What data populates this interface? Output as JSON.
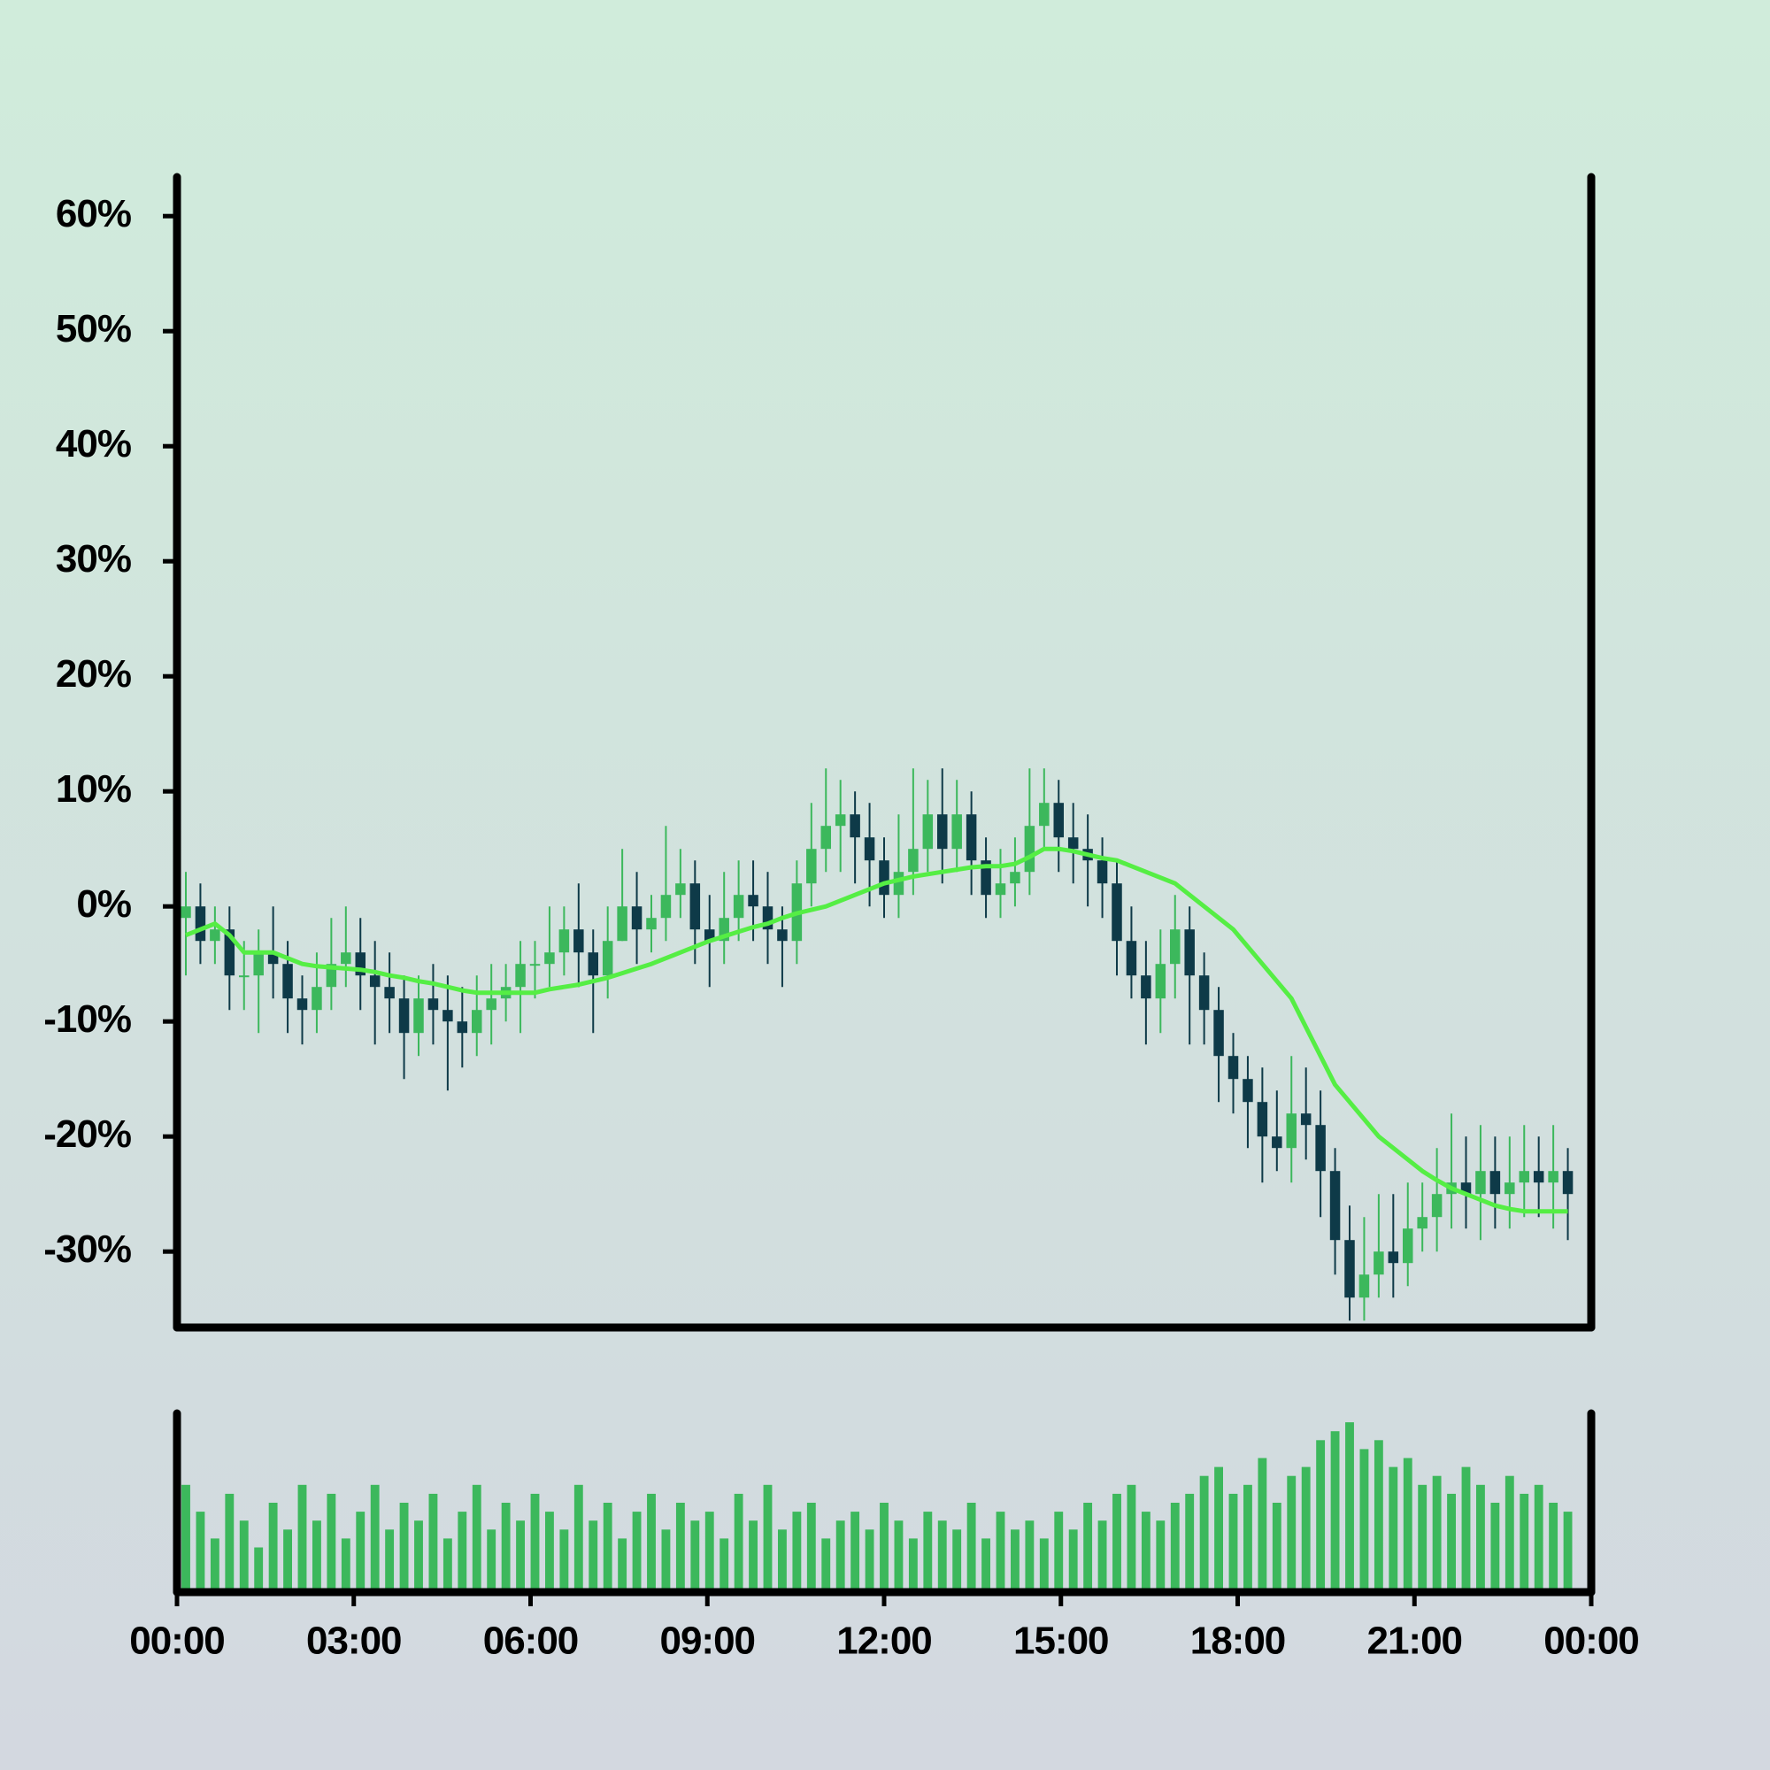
{
  "chart_data": {
    "type": "candlestick",
    "x": [
      0,
      15,
      30,
      45,
      60,
      75,
      90,
      105,
      120,
      135,
      150,
      165,
      180,
      195,
      210,
      225,
      240,
      255,
      270,
      285,
      300,
      315,
      330,
      345,
      360,
      375,
      390,
      405,
      420,
      435,
      450,
      465,
      480,
      495,
      510,
      525,
      540,
      555,
      570,
      585,
      600,
      615,
      630,
      645,
      660,
      675,
      690,
      705,
      720,
      735,
      750,
      765,
      780,
      795,
      810,
      825,
      840,
      855,
      870,
      885,
      900,
      915,
      930,
      945,
      960,
      975,
      990,
      1005,
      1020,
      1035,
      1050,
      1065,
      1080,
      1095,
      1110,
      1125,
      1140,
      1155,
      1170,
      1185,
      1200,
      1215,
      1230,
      1245,
      1260,
      1275,
      1290,
      1305,
      1320,
      1335,
      1350,
      1365,
      1380,
      1395,
      1410,
      1425
    ],
    "xlim": [
      0,
      1440
    ],
    "xticks": [
      {
        "value": 0,
        "label": "00:00"
      },
      {
        "value": 180,
        "label": "03:00"
      },
      {
        "value": 360,
        "label": "06:00"
      },
      {
        "value": 540,
        "label": "09:00"
      },
      {
        "value": 720,
        "label": "12:00"
      },
      {
        "value": 900,
        "label": "15:00"
      },
      {
        "value": 1080,
        "label": "18:00"
      },
      {
        "value": 1260,
        "label": "21:00"
      },
      {
        "value": 1440,
        "label": "00:00"
      }
    ],
    "ylim": [
      -36.6,
      63.4
    ],
    "yticks": [
      {
        "value": 60,
        "label": "60%"
      },
      {
        "value": 50,
        "label": "50%"
      },
      {
        "value": 40,
        "label": "40%"
      },
      {
        "value": 30,
        "label": "30%"
      },
      {
        "value": 20,
        "label": "20%"
      },
      {
        "value": 10,
        "label": "10%"
      },
      {
        "value": 0,
        "label": "0%"
      },
      {
        "value": -10,
        "label": "-10%"
      },
      {
        "value": -20,
        "label": "-20%"
      },
      {
        "value": -30,
        "label": "-30%"
      }
    ],
    "open": [
      -1,
      0,
      -3,
      -2,
      -6,
      -6,
      -4,
      -5,
      -8,
      -9,
      -7,
      -5,
      -4,
      -6,
      -7,
      -8,
      -11,
      -8,
      -9,
      -10,
      -11,
      -9,
      -8,
      -7,
      -5,
      -5,
      -4,
      -2,
      -4,
      -6,
      -3,
      0,
      -2,
      -1,
      1,
      2,
      -2,
      -3,
      -1,
      1,
      0,
      -2,
      -3,
      2,
      5,
      7,
      8,
      6,
      4,
      1,
      3,
      5,
      8,
      5,
      8,
      4,
      1,
      2,
      3,
      7,
      9,
      6,
      5,
      4,
      2,
      -3,
      -6,
      -8,
      -5,
      -2,
      -6,
      -9,
      -13,
      -15,
      -17,
      -20,
      -21,
      -18,
      -19,
      -23,
      -29,
      -34,
      -32,
      -30,
      -31,
      -28,
      -27,
      -25,
      -24,
      -25,
      -23,
      -25,
      -24,
      -23,
      -24,
      -23
    ],
    "high": [
      3,
      2,
      0,
      0,
      -3,
      -2,
      0,
      -3,
      -6,
      -4,
      -1,
      0,
      -1,
      -3,
      -4,
      -6,
      -6,
      -5,
      -6,
      -7,
      -6,
      -5,
      -5,
      -3,
      -3,
      0,
      0,
      2,
      -2,
      0,
      5,
      3,
      1,
      7,
      5,
      4,
      1,
      3,
      4,
      4,
      3,
      0,
      4,
      9,
      12,
      11,
      10,
      9,
      6,
      8,
      12,
      11,
      12,
      11,
      10,
      6,
      5,
      6,
      12,
      12,
      11,
      9,
      8,
      6,
      4,
      0,
      -3,
      -2,
      1,
      0,
      -4,
      -7,
      -11,
      -13,
      -14,
      -16,
      -13,
      -14,
      -16,
      -21,
      -26,
      -27,
      -25,
      -25,
      -24,
      -24,
      -21,
      -18,
      -20,
      -19,
      -20,
      -20,
      -19,
      -20,
      -19,
      -21
    ],
    "low": [
      -6,
      -5,
      -5,
      -9,
      -9,
      -11,
      -8,
      -11,
      -12,
      -11,
      -9,
      -7,
      -9,
      -12,
      -11,
      -15,
      -13,
      -12,
      -16,
      -14,
      -13,
      -12,
      -10,
      -11,
      -8,
      -7,
      -6,
      -7,
      -11,
      -8,
      -3,
      -5,
      -4,
      -3,
      -1,
      -5,
      -7,
      -5,
      -3,
      -3,
      -5,
      -7,
      -5,
      0,
      3,
      3,
      2,
      0,
      -1,
      -1,
      1,
      3,
      2,
      3,
      1,
      -1,
      -1,
      0,
      1,
      5,
      3,
      2,
      0,
      -1,
      -6,
      -8,
      -12,
      -11,
      -8,
      -12,
      -12,
      -17,
      -18,
      -21,
      -24,
      -23,
      -24,
      -22,
      -27,
      -32,
      -36,
      -36,
      -34,
      -34,
      -33,
      -30,
      -30,
      -28,
      -28,
      -29,
      -28,
      -28,
      -27,
      -27,
      -28,
      -29
    ],
    "close": [
      0,
      -3,
      -2,
      -6,
      -6,
      -4,
      -5,
      -8,
      -9,
      -7,
      -5,
      -4,
      -6,
      -7,
      -8,
      -11,
      -8,
      -9,
      -10,
      -11,
      -9,
      -8,
      -7,
      -5,
      -5,
      -4,
      -2,
      -4,
      -6,
      -3,
      0,
      -2,
      -1,
      1,
      2,
      -2,
      -3,
      -1,
      1,
      0,
      -2,
      -3,
      2,
      5,
      7,
      8,
      6,
      4,
      1,
      3,
      5,
      8,
      5,
      8,
      4,
      1,
      2,
      3,
      7,
      9,
      6,
      5,
      4,
      2,
      -3,
      -6,
      -8,
      -5,
      -2,
      -6,
      -9,
      -13,
      -15,
      -17,
      -20,
      -21,
      -18,
      -19,
      -23,
      -29,
      -34,
      -32,
      -30,
      -31,
      -28,
      -27,
      -25,
      -24,
      -25,
      -23,
      -25,
      -24,
      -23,
      -24,
      -23,
      -25
    ],
    "up_color": "#3cb85c",
    "down_color": "#0e3a48",
    "ma": {
      "color": "#55ee44",
      "values": [
        -2.5,
        -2,
        -1.5,
        -2.5,
        -4,
        -4,
        -4,
        -4.5,
        -5,
        -5.2,
        -5.3,
        -5.4,
        -5.5,
        -5.7,
        -6,
        -6.2,
        -6.5,
        -6.7,
        -7,
        -7.3,
        -7.5,
        -7.5,
        -7.5,
        -7.5,
        -7.5,
        -7.2,
        -7,
        -6.8,
        -6.5,
        -6.2,
        -5.8,
        -5.4,
        -5,
        -4.5,
        -4,
        -3.5,
        -3,
        -2.6,
        -2.2,
        -1.8,
        -1.5,
        -1,
        -0.6,
        -0.3,
        0,
        0.5,
        1,
        1.5,
        2,
        2.3,
        2.6,
        2.8,
        3,
        3.2,
        3.4,
        3.5,
        3.5,
        3.7,
        4.3,
        5,
        5,
        4.8,
        4.5,
        4.2,
        4,
        3.5,
        3,
        2.5,
        2,
        1,
        0,
        -1,
        -2,
        -3.5,
        -5,
        -6.5,
        -8,
        -10.5,
        -13,
        -15.5,
        -17,
        -18.5,
        -20,
        -21,
        -22,
        -23,
        -23.8,
        -24.5,
        -25,
        -25.5,
        -26,
        -26.3,
        -26.5,
        -26.5,
        -26.5,
        -26.5
      ]
    },
    "volume": {
      "color": "#3cb85c",
      "ylim": [
        0,
        100
      ],
      "values": [
        60,
        45,
        30,
        55,
        40,
        25,
        50,
        35,
        60,
        40,
        55,
        30,
        45,
        60,
        35,
        50,
        40,
        55,
        30,
        45,
        60,
        35,
        50,
        40,
        55,
        45,
        35,
        60,
        40,
        50,
        30,
        45,
        55,
        35,
        50,
        40,
        45,
        30,
        55,
        40,
        60,
        35,
        45,
        50,
        30,
        40,
        45,
        35,
        50,
        40,
        30,
        45,
        40,
        35,
        50,
        30,
        45,
        35,
        40,
        30,
        45,
        35,
        50,
        40,
        55,
        60,
        45,
        40,
        50,
        55,
        65,
        70,
        55,
        60,
        75,
        50,
        65,
        70,
        85,
        90,
        95,
        80,
        85,
        70,
        75,
        60,
        65,
        55,
        70,
        60,
        50,
        65,
        55,
        60,
        50,
        45
      ]
    }
  }
}
